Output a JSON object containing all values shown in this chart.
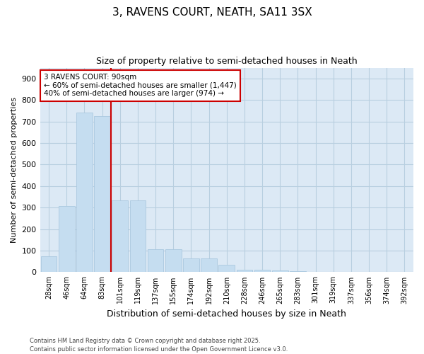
{
  "title": "3, RAVENS COURT, NEATH, SA11 3SX",
  "subtitle": "Size of property relative to semi-detached houses in Neath",
  "xlabel": "Distribution of semi-detached houses by size in Neath",
  "ylabel": "Number of semi-detached properties",
  "property_label": "3 RAVENS COURT: 90sqm",
  "annotation_line1": "← 60% of semi-detached houses are smaller (1,447)",
  "annotation_line2": "40% of semi-detached houses are larger (974) →",
  "footer_line1": "Contains HM Land Registry data © Crown copyright and database right 2025.",
  "footer_line2": "Contains public sector information licensed under the Open Government Licence v3.0.",
  "categories": [
    "28sqm",
    "46sqm",
    "64sqm",
    "83sqm",
    "101sqm",
    "119sqm",
    "137sqm",
    "155sqm",
    "174sqm",
    "192sqm",
    "210sqm",
    "228sqm",
    "246sqm",
    "265sqm",
    "283sqm",
    "301sqm",
    "319sqm",
    "337sqm",
    "356sqm",
    "374sqm",
    "392sqm"
  ],
  "values": [
    75,
    308,
    740,
    725,
    335,
    335,
    107,
    107,
    65,
    65,
    35,
    12,
    12,
    8,
    5,
    0,
    0,
    0,
    0,
    0,
    0
  ],
  "bar_color": "#c5ddf0",
  "bar_edge_color": "#aac8e0",
  "line_color": "#cc0000",
  "annotation_box_color": "#cc0000",
  "plot_bg_color": "#dce9f5",
  "background_color": "#ffffff",
  "grid_color": "#b8cfe0",
  "ylim": [
    0,
    950
  ],
  "yticks": [
    0,
    100,
    200,
    300,
    400,
    500,
    600,
    700,
    800,
    900
  ],
  "line_x_index": 3.5
}
